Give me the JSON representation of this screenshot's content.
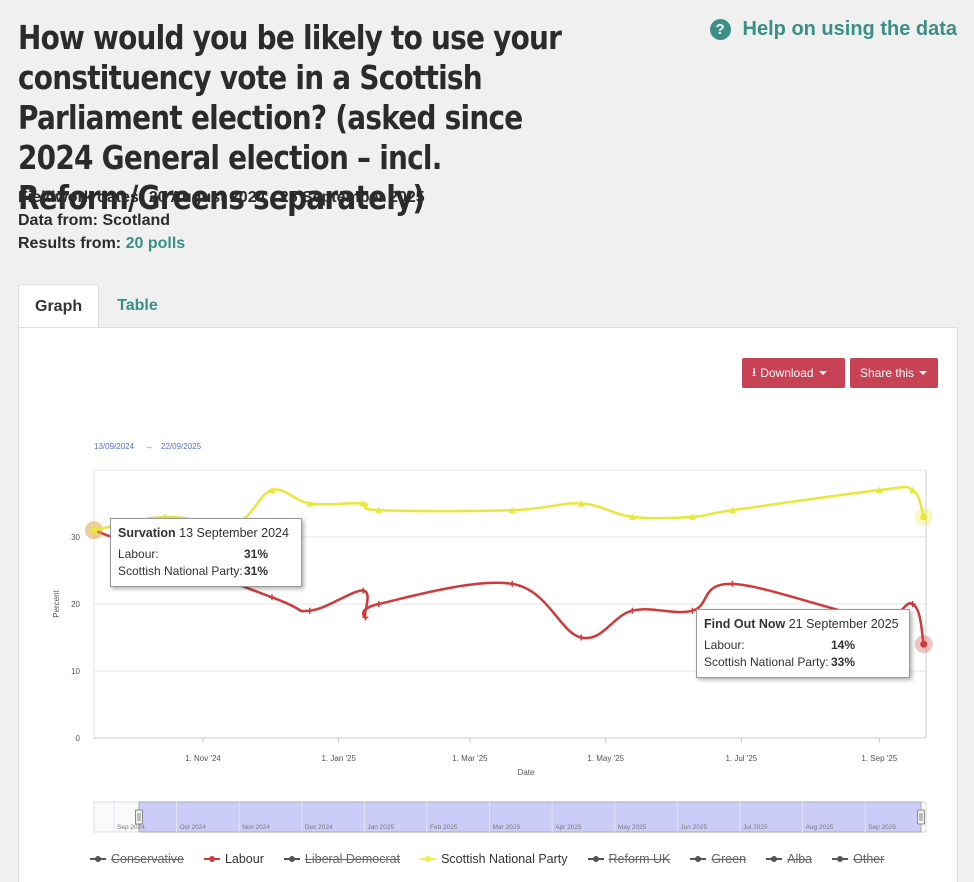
{
  "header": {
    "title": "How would you be likely to use your constituency vote in a Scottish Parliament election? (asked since 2024 General election – incl. Reform/Greens separately)",
    "help_label": "Help on using the data",
    "fieldwork_label": "Fieldwork dates:",
    "fieldwork_value": "20 August 2024 - 25 September 2025",
    "datafrom_label": "Data from:",
    "datafrom_value": "Scotland",
    "results_label": "Results from:",
    "results_value": "20 polls"
  },
  "tabs": [
    {
      "label": "Graph"
    },
    {
      "label": "Table"
    }
  ],
  "toolbar": {
    "download_label": "Download",
    "share_label": "Share this"
  },
  "range": {
    "from": "13/09/2024",
    "arrow": "→",
    "to": "22/09/2025"
  },
  "tooltips": [
    {
      "pollster": "Survation",
      "date": "13 September 2024",
      "row1_label": "Labour:",
      "row1_value": "31%",
      "row2_label": "Scottish National Party:",
      "row2_value": "31%"
    },
    {
      "pollster": "Find Out Now",
      "date": "21 September 2025",
      "row1_label": "Labour:",
      "row1_value": "14%",
      "row2_label": "Scottish National Party:",
      "row2_value": "33%"
    }
  ],
  "navigator_labels": [
    "Sep 2024",
    "Oct 2024",
    "Nov 2024",
    "Dec 2024",
    "Jan 2025",
    "Feb 2025",
    "Mar 2025",
    "Apr 2025",
    "May 2025",
    "Jun 2025",
    "Jul 2025",
    "Aug 2025",
    "Sep 2025"
  ],
  "legend": [
    {
      "name": "Conservative",
      "color": "#555555",
      "visible": false
    },
    {
      "name": "Labour",
      "color": "#d03a3a",
      "visible": true
    },
    {
      "name": "Liberal Democrat",
      "color": "#555555",
      "visible": false
    },
    {
      "name": "Scottish National Party",
      "color": "#eeee44",
      "visible": true
    },
    {
      "name": "Reform UK",
      "color": "#555555",
      "visible": false
    },
    {
      "name": "Green",
      "color": "#555555",
      "visible": false
    },
    {
      "name": "Alba",
      "color": "#555555",
      "visible": false
    },
    {
      "name": "Other",
      "color": "#555555",
      "visible": false
    }
  ],
  "chart_data": {
    "type": "line",
    "xlabel": "Date",
    "ylabel": "Percent",
    "ylim": [
      0,
      40
    ],
    "yticks": [
      0,
      10,
      20,
      30
    ],
    "xticks": [
      {
        "label": "1. Nov '24",
        "date": "2024-11-01"
      },
      {
        "label": "1. Jan '25",
        "date": "2025-01-01"
      },
      {
        "label": "1. Mar '25",
        "date": "2025-03-01"
      },
      {
        "label": "1. May '25",
        "date": "2025-05-01"
      },
      {
        "label": "1. Jul '25",
        "date": "2025-07-01"
      },
      {
        "label": "1. Sep '25",
        "date": "2025-09-01"
      }
    ],
    "xrange": [
      "2024-09-13",
      "2025-09-22"
    ],
    "grid": true,
    "series": [
      {
        "name": "Labour",
        "color": "#d03a3a",
        "points": [
          [
            "2024-09-13",
            31
          ],
          [
            "2024-12-02",
            21
          ],
          [
            "2024-12-19",
            19
          ],
          [
            "2025-01-12",
            22
          ],
          [
            "2025-01-13",
            18
          ],
          [
            "2025-01-19",
            20
          ],
          [
            "2025-03-20",
            23
          ],
          [
            "2025-04-20",
            15
          ],
          [
            "2025-05-13",
            19
          ],
          [
            "2025-06-09",
            19
          ],
          [
            "2025-06-27",
            23
          ],
          [
            "2025-08-29",
            18
          ],
          [
            "2025-09-16",
            20
          ],
          [
            "2025-09-21",
            14
          ]
        ]
      },
      {
        "name": "Scottish National Party",
        "color": "#e8e83a",
        "points": [
          [
            "2024-09-13",
            31
          ],
          [
            "2024-10-15",
            33
          ],
          [
            "2024-11-15",
            32
          ],
          [
            "2024-12-02",
            37
          ],
          [
            "2024-12-19",
            35
          ],
          [
            "2025-01-12",
            35
          ],
          [
            "2025-01-19",
            34
          ],
          [
            "2025-03-20",
            34
          ],
          [
            "2025-04-20",
            35
          ],
          [
            "2025-05-13",
            33
          ],
          [
            "2025-06-09",
            33
          ],
          [
            "2025-06-27",
            34
          ],
          [
            "2025-09-01",
            37
          ],
          [
            "2025-09-16",
            37
          ],
          [
            "2025-09-21",
            33
          ]
        ]
      }
    ]
  }
}
